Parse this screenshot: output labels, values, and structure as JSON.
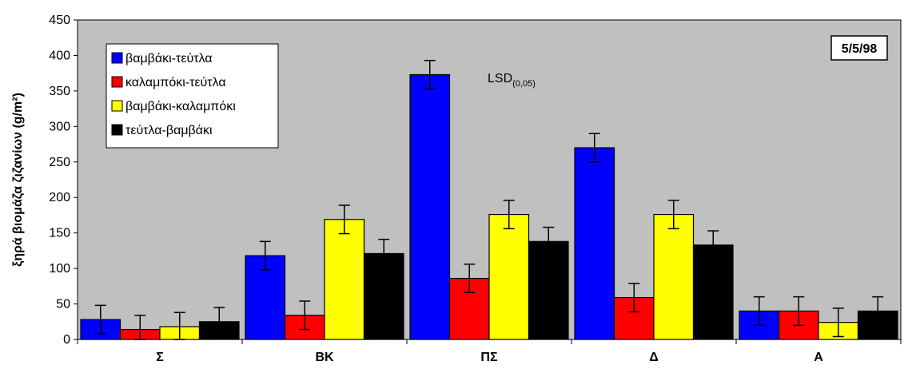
{
  "chart_data": {
    "type": "bar",
    "categories": [
      "Σ",
      "ΒΚ",
      "ΠΣ",
      "Δ",
      "Α"
    ],
    "ylabel": "ξηρά βιομάζα ζιζανίων (g/m²)",
    "ylim": [
      0,
      450
    ],
    "yticks": [
      0,
      50,
      100,
      150,
      200,
      250,
      300,
      350,
      400,
      450
    ],
    "grid": false,
    "legend_position": "top-left",
    "date_label": "5/5/98",
    "annotation": {
      "main": "LSD",
      "sub": "(0,05)"
    },
    "error_bar_half_width": 20,
    "series": [
      {
        "name": "βαμβάκι-τεύτλα",
        "color": "#0000ff",
        "values": [
          28,
          118,
          373,
          270,
          40
        ]
      },
      {
        "name": "καλαμπόκι-τεύτλα",
        "color": "#ff0000",
        "values": [
          14,
          34,
          86,
          59,
          40
        ]
      },
      {
        "name": "βαμβάκι-καλαμπόκι",
        "color": "#ffff00",
        "values": [
          18,
          169,
          176,
          176,
          24
        ]
      },
      {
        "name": "τεύτλα-βαμβάκι",
        "color": "#000000",
        "values": [
          25,
          121,
          138,
          133,
          40
        ]
      }
    ],
    "plot_background": "#c0c0c0"
  }
}
